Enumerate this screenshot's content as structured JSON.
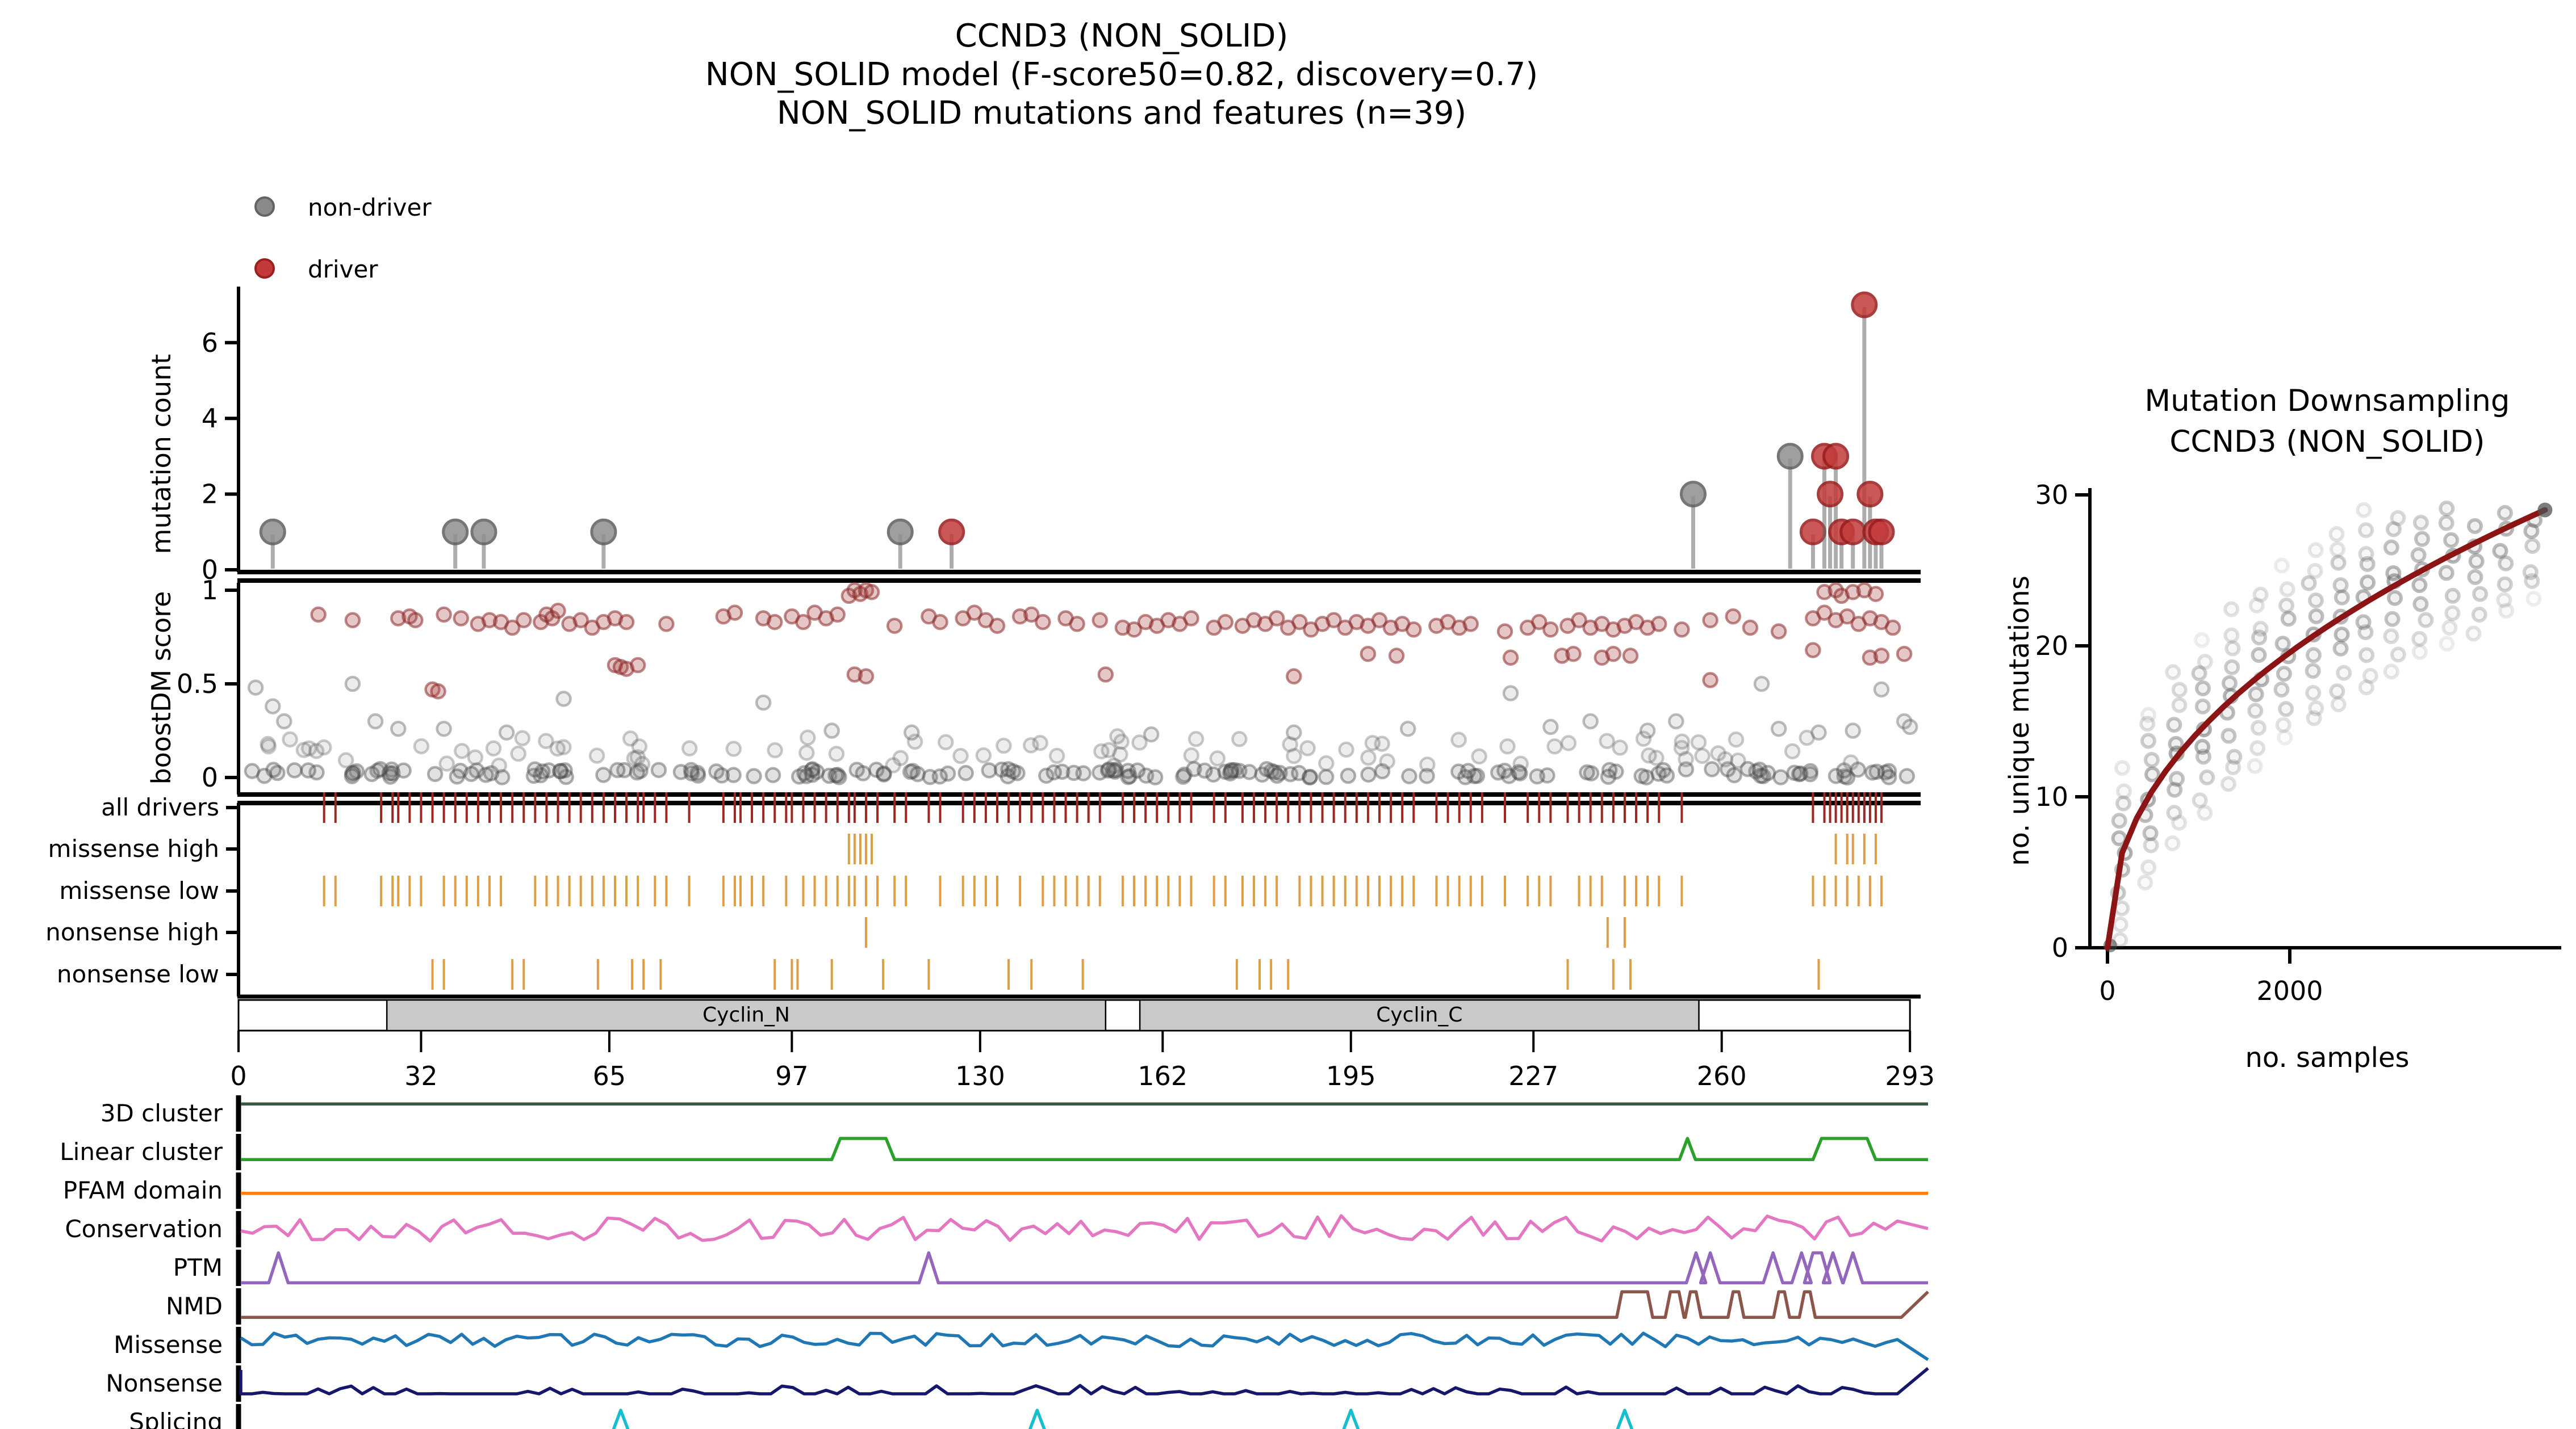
{
  "title": {
    "line1": "CCND3 (NON_SOLID)",
    "line2": "NON_SOLID model (F-score50=0.82, discovery=0.7)",
    "line3": "NON_SOLID mutations and features (n=39)"
  },
  "legend": {
    "items": [
      {
        "label": "non-driver",
        "color": "#8a8a8a",
        "edge": "#636363"
      },
      {
        "label": "driver",
        "color": "#c43a3a",
        "edge": "#9c1f1f"
      }
    ]
  },
  "colors": {
    "driver_tick": "#9d2823",
    "consequence_tick": "#dd9e44",
    "domain_fill": "#c9c9c9",
    "curve": "#8b1414",
    "axis": "#000000"
  },
  "chart_data": [
    {
      "id": "needle-plot",
      "type": "scatter",
      "ylabel": "mutation count",
      "yticks": [
        0,
        2,
        4,
        6
      ],
      "xlim": [
        0,
        293
      ],
      "non_driver": [
        [
          6,
          1
        ],
        [
          38,
          1
        ],
        [
          43,
          1
        ],
        [
          64,
          1
        ],
        [
          116,
          1
        ],
        [
          255,
          2
        ],
        [
          272,
          3
        ]
      ],
      "driver": [
        [
          125,
          1
        ],
        [
          276,
          1
        ],
        [
          278,
          3
        ],
        [
          280,
          3
        ],
        [
          279,
          2
        ],
        [
          281,
          1
        ],
        [
          283,
          1
        ],
        [
          285,
          7
        ],
        [
          286,
          2
        ],
        [
          287,
          1
        ],
        [
          288,
          1
        ]
      ]
    },
    {
      "id": "boostdm-plot",
      "type": "scatter",
      "ylabel": "boostDM score",
      "yticks": [
        0,
        0.5,
        1
      ],
      "driver_points": [
        [
          14,
          0.87
        ],
        [
          20,
          0.84
        ],
        [
          28,
          0.85
        ],
        [
          30,
          0.86
        ],
        [
          31,
          0.84
        ],
        [
          34,
          0.47
        ],
        [
          35,
          0.46
        ],
        [
          36,
          0.87
        ],
        [
          39,
          0.85
        ],
        [
          42,
          0.82
        ],
        [
          44,
          0.84
        ],
        [
          46,
          0.83
        ],
        [
          48,
          0.8
        ],
        [
          50,
          0.84
        ],
        [
          53,
          0.83
        ],
        [
          54,
          0.87
        ],
        [
          55,
          0.85
        ],
        [
          56,
          0.89
        ],
        [
          58,
          0.82
        ],
        [
          60,
          0.84
        ],
        [
          62,
          0.8
        ],
        [
          64,
          0.83
        ],
        [
          66,
          0.85
        ],
        [
          66,
          0.6
        ],
        [
          67,
          0.59
        ],
        [
          68,
          0.83
        ],
        [
          68,
          0.58
        ],
        [
          70,
          0.6
        ],
        [
          75,
          0.82
        ],
        [
          85,
          0.86
        ],
        [
          87,
          0.88
        ],
        [
          92,
          0.85
        ],
        [
          94,
          0.83
        ],
        [
          97,
          0.86
        ],
        [
          99,
          0.83
        ],
        [
          101,
          0.88
        ],
        [
          103,
          0.85
        ],
        [
          105,
          0.87
        ],
        [
          107,
          0.97
        ],
        [
          108,
          1.0
        ],
        [
          108,
          0.55
        ],
        [
          109,
          0.98
        ],
        [
          110,
          1.0
        ],
        [
          110,
          0.54
        ],
        [
          111,
          0.99
        ],
        [
          115,
          0.81
        ],
        [
          121,
          0.86
        ],
        [
          123,
          0.83
        ],
        [
          127,
          0.85
        ],
        [
          129,
          0.88
        ],
        [
          131,
          0.84
        ],
        [
          133,
          0.81
        ],
        [
          137,
          0.86
        ],
        [
          139,
          0.87
        ],
        [
          141,
          0.83
        ],
        [
          145,
          0.85
        ],
        [
          147,
          0.82
        ],
        [
          151,
          0.84
        ],
        [
          152,
          0.55
        ],
        [
          155,
          0.8
        ],
        [
          157,
          0.79
        ],
        [
          159,
          0.83
        ],
        [
          161,
          0.81
        ],
        [
          163,
          0.84
        ],
        [
          165,
          0.82
        ],
        [
          167,
          0.85
        ],
        [
          171,
          0.8
        ],
        [
          173,
          0.83
        ],
        [
          176,
          0.81
        ],
        [
          178,
          0.84
        ],
        [
          180,
          0.82
        ],
        [
          182,
          0.85
        ],
        [
          184,
          0.8
        ],
        [
          185,
          0.54
        ],
        [
          186,
          0.83
        ],
        [
          188,
          0.79
        ],
        [
          190,
          0.82
        ],
        [
          192,
          0.84
        ],
        [
          194,
          0.8
        ],
        [
          196,
          0.83
        ],
        [
          198,
          0.81
        ],
        [
          198,
          0.66
        ],
        [
          200,
          0.84
        ],
        [
          202,
          0.8
        ],
        [
          203,
          0.65
        ],
        [
          204,
          0.82
        ],
        [
          206,
          0.79
        ],
        [
          210,
          0.81
        ],
        [
          212,
          0.83
        ],
        [
          214,
          0.8
        ],
        [
          216,
          0.82
        ],
        [
          222,
          0.78
        ],
        [
          223,
          0.64
        ],
        [
          226,
          0.8
        ],
        [
          228,
          0.83
        ],
        [
          230,
          0.79
        ],
        [
          232,
          0.65
        ],
        [
          233,
          0.81
        ],
        [
          234,
          0.66
        ],
        [
          235,
          0.84
        ],
        [
          237,
          0.8
        ],
        [
          239,
          0.64
        ],
        [
          239,
          0.82
        ],
        [
          241,
          0.66
        ],
        [
          241,
          0.79
        ],
        [
          243,
          0.81
        ],
        [
          244,
          0.65
        ],
        [
          245,
          0.83
        ],
        [
          247,
          0.8
        ],
        [
          249,
          0.82
        ],
        [
          253,
          0.79
        ],
        [
          258,
          0.84
        ],
        [
          258,
          0.52
        ],
        [
          262,
          0.86
        ],
        [
          265,
          0.8
        ],
        [
          270,
          0.78
        ],
        [
          276,
          0.85
        ],
        [
          276,
          0.68
        ],
        [
          278,
          0.88
        ],
        [
          278,
          0.99
        ],
        [
          280,
          0.84
        ],
        [
          280,
          1.0
        ],
        [
          281,
          0.97
        ],
        [
          282,
          0.86
        ],
        [
          283,
          0.99
        ],
        [
          284,
          0.82
        ],
        [
          285,
          1.0
        ],
        [
          286,
          0.85
        ],
        [
          286,
          0.64
        ],
        [
          287,
          0.98
        ],
        [
          288,
          0.83
        ],
        [
          288,
          0.65
        ],
        [
          290,
          0.8
        ],
        [
          292,
          0.66
        ]
      ],
      "nondriver_points": [
        [
          3,
          0.48
        ],
        [
          6,
          0.38
        ],
        [
          8,
          0.3
        ],
        [
          20,
          0.5
        ],
        [
          24,
          0.3
        ],
        [
          28,
          0.26
        ],
        [
          36,
          0.26
        ],
        [
          47,
          0.24
        ],
        [
          57,
          0.42
        ],
        [
          92,
          0.4
        ],
        [
          104,
          0.25
        ],
        [
          118,
          0.24
        ],
        [
          160,
          0.23
        ],
        [
          185,
          0.24
        ],
        [
          205,
          0.26
        ],
        [
          223,
          0.45
        ],
        [
          230,
          0.27
        ],
        [
          237,
          0.3
        ],
        [
          247,
          0.25
        ],
        [
          252,
          0.3
        ],
        [
          267,
          0.5
        ],
        [
          270,
          0.26
        ],
        [
          277,
          0.24
        ],
        [
          283,
          0.25
        ],
        [
          288,
          0.47
        ],
        [
          292,
          0.3
        ],
        [
          293,
          0.27
        ]
      ],
      "nondriver_baseline": {
        "n": 175,
        "x_min": 1,
        "x_max": 293,
        "y_min": 0.0,
        "y_max": 0.045
      },
      "nondriver_band": {
        "n": 85,
        "x_min": 2,
        "x_max": 292,
        "y_min": 0.06,
        "y_max": 0.22
      }
    },
    {
      "id": "consequence-tracks",
      "type": "ticks",
      "rows": [
        {
          "label": "all drivers",
          "color": "#9d2823",
          "positions": [
            15,
            17,
            25,
            27,
            28,
            30,
            32,
            34,
            36,
            38,
            40,
            42,
            44,
            46,
            48,
            50,
            52,
            54,
            56,
            58,
            60,
            62,
            64,
            66,
            68,
            70,
            71,
            73,
            75,
            79,
            85,
            87,
            88,
            90,
            92,
            94,
            96,
            97,
            99,
            101,
            103,
            105,
            107,
            108,
            110,
            112,
            115,
            117,
            121,
            123,
            127,
            129,
            131,
            133,
            135,
            137,
            139,
            141,
            143,
            145,
            147,
            149,
            151,
            155,
            157,
            159,
            161,
            163,
            165,
            167,
            171,
            173,
            176,
            178,
            180,
            182,
            184,
            186,
            188,
            190,
            192,
            194,
            196,
            198,
            200,
            202,
            204,
            206,
            210,
            212,
            214,
            216,
            218,
            222,
            226,
            228,
            230,
            233,
            235,
            237,
            239,
            241,
            243,
            245,
            247,
            249,
            253,
            276,
            278,
            279,
            280,
            281,
            282,
            283,
            284,
            285,
            286,
            287,
            288
          ]
        },
        {
          "label": "missense high",
          "color": "#dd9e44",
          "positions": [
            107,
            108,
            109,
            110,
            111,
            280,
            282,
            283,
            285,
            287
          ]
        },
        {
          "label": "missense low",
          "color": "#dd9e44",
          "positions": [
            15,
            17,
            25,
            27,
            28,
            30,
            32,
            36,
            38,
            40,
            42,
            44,
            46,
            52,
            54,
            56,
            58,
            60,
            62,
            64,
            66,
            68,
            70,
            73,
            75,
            79,
            85,
            87,
            88,
            90,
            92,
            96,
            99,
            101,
            103,
            105,
            107,
            108,
            110,
            112,
            115,
            117,
            123,
            127,
            129,
            131,
            133,
            137,
            141,
            143,
            145,
            147,
            149,
            151,
            155,
            157,
            159,
            161,
            163,
            165,
            167,
            171,
            173,
            176,
            178,
            180,
            182,
            186,
            188,
            190,
            192,
            194,
            196,
            198,
            200,
            202,
            204,
            206,
            210,
            212,
            214,
            216,
            218,
            222,
            226,
            228,
            230,
            235,
            237,
            239,
            243,
            245,
            247,
            249,
            253,
            276,
            278,
            280,
            282,
            284,
            286,
            288
          ]
        },
        {
          "label": "nonsense high",
          "color": "#dd9e44",
          "positions": [
            110,
            240,
            243
          ]
        },
        {
          "label": "nonsense low",
          "color": "#dd9e44",
          "positions": [
            34,
            36,
            48,
            50,
            63,
            69,
            71,
            74,
            94,
            97,
            98,
            104,
            113,
            121,
            135,
            139,
            148,
            175,
            179,
            181,
            184,
            233,
            241,
            244,
            277
          ]
        }
      ]
    },
    {
      "id": "domain-bar",
      "type": "domains",
      "xticks": [
        0,
        32,
        65,
        97,
        130,
        162,
        195,
        227,
        260,
        293
      ],
      "domains": [
        {
          "name": "Cyclin_N",
          "start": 26,
          "end": 152
        },
        {
          "name": "Cyclin_C",
          "start": 158,
          "end": 256
        }
      ]
    },
    {
      "id": "feature-tracks",
      "type": "lines",
      "rows": [
        {
          "label": "3D cluster",
          "color": "#3a5a40",
          "shape": "flat",
          "level": 0.78
        },
        {
          "label": "Linear cluster",
          "color": "#2ca02c",
          "shape": "bumps",
          "level": 0.28,
          "h": 0.62,
          "bumps": [
            [
              105.5,
              113.5
            ],
            [
              253.5,
              254.5
            ],
            [
              277.5,
              285.5
            ]
          ]
        },
        {
          "label": "PFAM domain",
          "color": "#ff7f0e",
          "shape": "flat",
          "level": 0.42
        },
        {
          "label": "Conservation",
          "color": "#e377c2",
          "shape": "noise",
          "base": 0.52,
          "amp": 0.38,
          "seed": 7,
          "n": 140
        },
        {
          "label": "PTM",
          "color": "#9467bd",
          "shape": "spikes",
          "level": 0.06,
          "h": 0.88,
          "spikes": [
            [
              7
            ],
            [
              121
            ],
            [
              255.5
            ],
            [
              258
            ],
            [
              269
            ],
            [
              274
            ],
            [
              276,
              277.5
            ],
            [
              279.5
            ],
            [
              283
            ]
          ]
        },
        {
          "label": "NMD",
          "color": "#8c564b",
          "shape": "pulses",
          "level": 0.18,
          "h": 0.75,
          "pulses": [
            [
              242.5,
              247
            ],
            [
              251,
              252.5
            ],
            [
              254.5,
              255.5
            ],
            [
              262,
              263
            ],
            [
              270,
              271
            ],
            [
              274.5,
              275.5
            ]
          ],
          "end_rise": 291.5
        },
        {
          "label": "Missense",
          "color": "#1f77b4",
          "shape": "noise",
          "base": 0.65,
          "amp": 0.2,
          "seed": 3,
          "n": 150,
          "end_drop": true
        },
        {
          "label": "Nonsense",
          "color": "#16166b",
          "shape": "noise",
          "base": 0.2,
          "amp": 0.3,
          "seed": 11,
          "n": 150,
          "up_only": true,
          "start_spike": true,
          "end_rise": true
        },
        {
          "label": "Splicing",
          "color": "#17becf",
          "shape": "spikes",
          "level": 0.1,
          "h": 0.75,
          "spikes": [
            [
              67
            ],
            [
              140
            ],
            [
              195
            ],
            [
              243
            ]
          ]
        }
      ]
    },
    {
      "id": "downsampling-plot",
      "type": "scatter-line",
      "title_line1": "Mutation Downsampling",
      "title_line2": "CCND3 (NON_SOLID)",
      "xlabel": "no. samples",
      "ylabel": "no. unique mutations",
      "xticks": [
        0,
        2000
      ],
      "yticks": [
        0,
        10,
        20,
        30
      ],
      "x_max": 4800,
      "y_end": 29,
      "curve_exponent": 0.45,
      "curve_color": "#8b1414",
      "dot_columns": [
        150,
        450,
        750,
        1050,
        1350,
        1650,
        1950,
        2250,
        2550,
        2850,
        3150,
        3450,
        3750,
        4050,
        4350,
        4650
      ],
      "dots_per_column": 11,
      "dot_spread": 1.15
    }
  ]
}
